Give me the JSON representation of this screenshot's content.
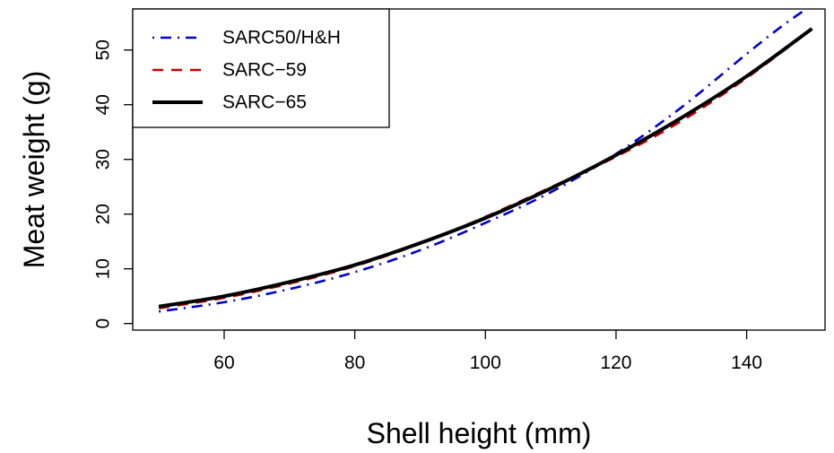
{
  "chart_data": {
    "type": "line",
    "title": "",
    "xlabel": "Shell height (mm)",
    "ylabel": "Meat weight (g)",
    "xlim": [
      50,
      150
    ],
    "ylim": [
      0,
      56
    ],
    "x_ticks": [
      60,
      80,
      100,
      120,
      140
    ],
    "y_ticks": [
      0,
      10,
      20,
      30,
      40,
      50
    ],
    "grid": false,
    "legend_position": "top-left",
    "series": [
      {
        "name": "SARC50/H&H",
        "color": "#0000CD",
        "line_style": "dot-dash",
        "x": [
          50,
          60,
          70,
          80,
          90,
          100,
          110,
          120,
          130,
          140,
          145,
          148.5
        ],
        "y": [
          2.2,
          3.9,
          6.3,
          9.4,
          13.4,
          18.4,
          24.0,
          31.0,
          39.5,
          49.3,
          54.0,
          57.0
        ]
      },
      {
        "name": "SARC−59",
        "color": "#CC0000",
        "line_style": "dashed",
        "x": [
          50,
          60,
          70,
          80,
          90,
          100,
          110,
          120,
          130,
          140,
          150
        ],
        "y": [
          2.8,
          4.7,
          7.3,
          10.5,
          14.6,
          19.5,
          24.9,
          30.5,
          37.0,
          44.9,
          53.8
        ]
      },
      {
        "name": "SARC−65",
        "color": "#000000",
        "line_style": "solid",
        "x": [
          50,
          60,
          70,
          80,
          90,
          100,
          110,
          120,
          130,
          140,
          150
        ],
        "y": [
          3.1,
          5.0,
          7.6,
          10.7,
          14.7,
          19.3,
          24.7,
          30.8,
          37.6,
          45.2,
          53.9
        ]
      }
    ]
  }
}
